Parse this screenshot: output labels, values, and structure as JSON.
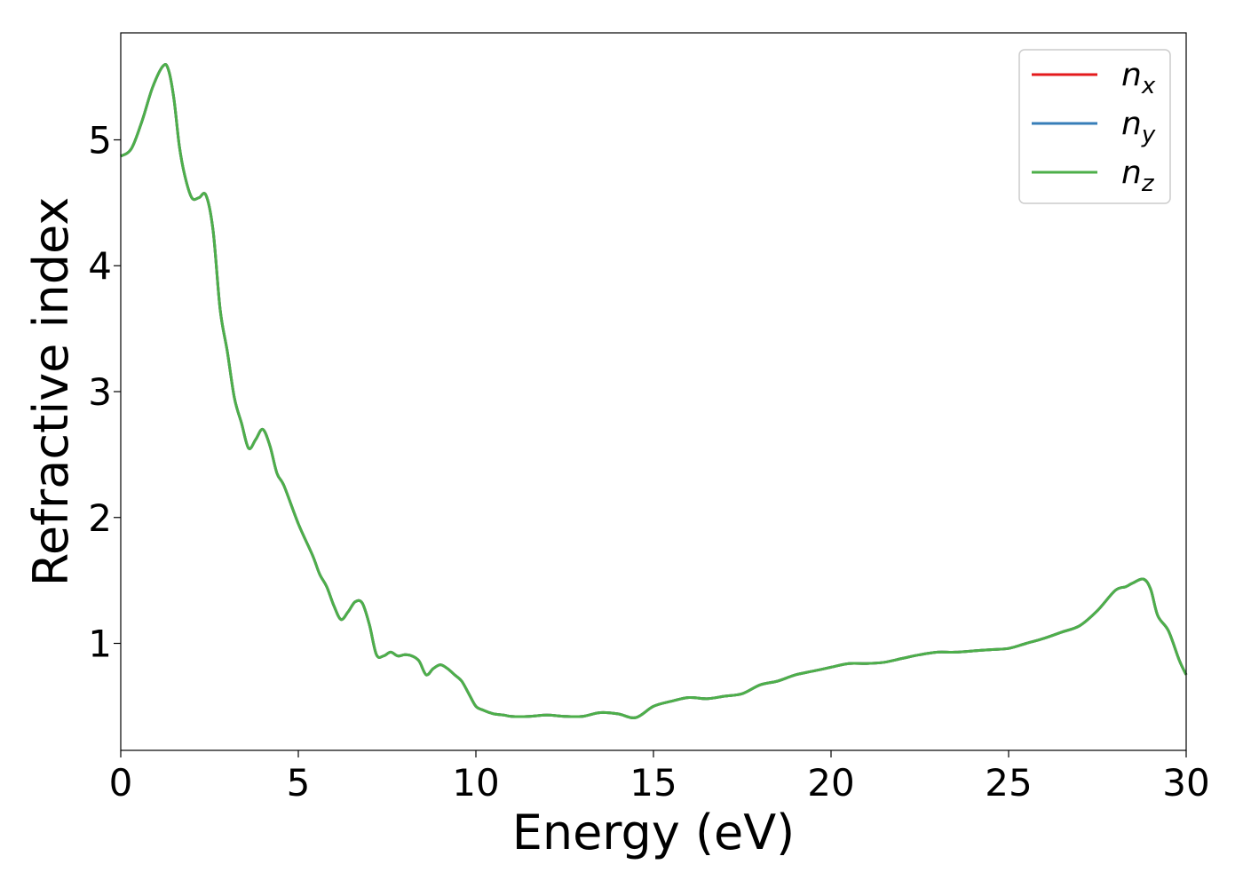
{
  "chart_data": {
    "type": "line",
    "xlabel": "Energy (eV)",
    "ylabel": "Refractive index",
    "xlim": [
      0,
      30
    ],
    "ylim": [
      0.15,
      5.85
    ],
    "xticks": [
      0,
      5,
      10,
      15,
      20,
      25,
      30
    ],
    "yticks": [
      1,
      2,
      3,
      4,
      5
    ],
    "grid": false,
    "legend_position": "top-right",
    "series": [
      {
        "name": "n_x",
        "label_base": "n",
        "label_sub": "x",
        "color": "#e41a1c",
        "x": [
          0,
          0.3,
          0.6,
          0.9,
          1.2,
          1.35,
          1.5,
          1.65,
          1.8,
          2.0,
          2.2,
          2.4,
          2.6,
          2.8,
          3.0,
          3.2,
          3.4,
          3.6,
          3.8,
          4.0,
          4.2,
          4.4,
          4.6,
          5.0,
          5.4,
          5.6,
          5.8,
          6.0,
          6.2,
          6.4,
          6.6,
          6.8,
          7.0,
          7.2,
          7.4,
          7.6,
          7.8,
          8.0,
          8.2,
          8.4,
          8.6,
          8.8,
          9.0,
          9.2,
          9.4,
          9.6,
          9.8,
          10.0,
          10.2,
          10.5,
          10.8,
          11.0,
          11.5,
          12.0,
          12.5,
          13.0,
          13.5,
          14.0,
          14.5,
          15.0,
          15.5,
          16.0,
          16.5,
          17.0,
          17.5,
          18.0,
          18.5,
          19.0,
          19.5,
          20.0,
          20.5,
          21.0,
          21.5,
          22.0,
          22.5,
          23.0,
          23.5,
          24.0,
          24.5,
          25.0,
          25.5,
          26.0,
          26.5,
          27.0,
          27.5,
          28.0,
          28.3,
          28.5,
          28.8,
          29.0,
          29.2,
          29.5,
          29.8,
          30.0
        ],
        "y": [
          4.87,
          4.93,
          5.15,
          5.42,
          5.59,
          5.55,
          5.32,
          4.95,
          4.72,
          4.54,
          4.54,
          4.56,
          4.28,
          3.65,
          3.32,
          2.95,
          2.75,
          2.55,
          2.62,
          2.7,
          2.57,
          2.35,
          2.25,
          1.95,
          1.7,
          1.55,
          1.45,
          1.3,
          1.19,
          1.25,
          1.33,
          1.32,
          1.15,
          0.91,
          0.9,
          0.93,
          0.9,
          0.91,
          0.9,
          0.86,
          0.75,
          0.8,
          0.83,
          0.8,
          0.75,
          0.7,
          0.6,
          0.5,
          0.47,
          0.44,
          0.43,
          0.42,
          0.42,
          0.43,
          0.42,
          0.42,
          0.45,
          0.44,
          0.41,
          0.5,
          0.54,
          0.57,
          0.56,
          0.58,
          0.6,
          0.67,
          0.7,
          0.75,
          0.78,
          0.81,
          0.84,
          0.84,
          0.85,
          0.88,
          0.91,
          0.93,
          0.93,
          0.94,
          0.95,
          0.96,
          1.0,
          1.04,
          1.09,
          1.14,
          1.26,
          1.42,
          1.45,
          1.48,
          1.51,
          1.43,
          1.22,
          1.1,
          0.87,
          0.75
        ]
      },
      {
        "name": "n_y",
        "label_base": "n",
        "label_sub": "y",
        "color": "#377eb8",
        "x": [
          0,
          0.3,
          0.6,
          0.9,
          1.2,
          1.35,
          1.5,
          1.65,
          1.8,
          2.0,
          2.2,
          2.4,
          2.6,
          2.8,
          3.0,
          3.2,
          3.4,
          3.6,
          3.8,
          4.0,
          4.2,
          4.4,
          4.6,
          5.0,
          5.4,
          5.6,
          5.8,
          6.0,
          6.2,
          6.4,
          6.6,
          6.8,
          7.0,
          7.2,
          7.4,
          7.6,
          7.8,
          8.0,
          8.2,
          8.4,
          8.6,
          8.8,
          9.0,
          9.2,
          9.4,
          9.6,
          9.8,
          10.0,
          10.2,
          10.5,
          10.8,
          11.0,
          11.5,
          12.0,
          12.5,
          13.0,
          13.5,
          14.0,
          14.5,
          15.0,
          15.5,
          16.0,
          16.5,
          17.0,
          17.5,
          18.0,
          18.5,
          19.0,
          19.5,
          20.0,
          20.5,
          21.0,
          21.5,
          22.0,
          22.5,
          23.0,
          23.5,
          24.0,
          24.5,
          25.0,
          25.5,
          26.0,
          26.5,
          27.0,
          27.5,
          28.0,
          28.3,
          28.5,
          28.8,
          29.0,
          29.2,
          29.5,
          29.8,
          30.0
        ],
        "y": [
          4.87,
          4.93,
          5.15,
          5.42,
          5.59,
          5.55,
          5.32,
          4.95,
          4.72,
          4.54,
          4.54,
          4.56,
          4.28,
          3.65,
          3.32,
          2.95,
          2.75,
          2.55,
          2.62,
          2.7,
          2.57,
          2.35,
          2.25,
          1.95,
          1.7,
          1.55,
          1.45,
          1.3,
          1.19,
          1.25,
          1.33,
          1.32,
          1.15,
          0.91,
          0.9,
          0.93,
          0.9,
          0.91,
          0.9,
          0.86,
          0.75,
          0.8,
          0.83,
          0.8,
          0.75,
          0.7,
          0.6,
          0.5,
          0.47,
          0.44,
          0.43,
          0.42,
          0.42,
          0.43,
          0.42,
          0.42,
          0.45,
          0.44,
          0.41,
          0.5,
          0.54,
          0.57,
          0.56,
          0.58,
          0.6,
          0.67,
          0.7,
          0.75,
          0.78,
          0.81,
          0.84,
          0.84,
          0.85,
          0.88,
          0.91,
          0.93,
          0.93,
          0.94,
          0.95,
          0.96,
          1.0,
          1.04,
          1.09,
          1.14,
          1.26,
          1.42,
          1.45,
          1.48,
          1.51,
          1.43,
          1.22,
          1.1,
          0.87,
          0.75
        ]
      },
      {
        "name": "n_z",
        "label_base": "n",
        "label_sub": "z",
        "color": "#4daf4a",
        "x": [
          0,
          0.3,
          0.6,
          0.9,
          1.2,
          1.35,
          1.5,
          1.65,
          1.8,
          2.0,
          2.2,
          2.4,
          2.6,
          2.8,
          3.0,
          3.2,
          3.4,
          3.6,
          3.8,
          4.0,
          4.2,
          4.4,
          4.6,
          5.0,
          5.4,
          5.6,
          5.8,
          6.0,
          6.2,
          6.4,
          6.6,
          6.8,
          7.0,
          7.2,
          7.4,
          7.6,
          7.8,
          8.0,
          8.2,
          8.4,
          8.6,
          8.8,
          9.0,
          9.2,
          9.4,
          9.6,
          9.8,
          10.0,
          10.2,
          10.5,
          10.8,
          11.0,
          11.5,
          12.0,
          12.5,
          13.0,
          13.5,
          14.0,
          14.5,
          15.0,
          15.5,
          16.0,
          16.5,
          17.0,
          17.5,
          18.0,
          18.5,
          19.0,
          19.5,
          20.0,
          20.5,
          21.0,
          21.5,
          22.0,
          22.5,
          23.0,
          23.5,
          24.0,
          24.5,
          25.0,
          25.5,
          26.0,
          26.5,
          27.0,
          27.5,
          28.0,
          28.3,
          28.5,
          28.8,
          29.0,
          29.2,
          29.5,
          29.8,
          30.0
        ],
        "y": [
          4.87,
          4.93,
          5.15,
          5.42,
          5.59,
          5.55,
          5.32,
          4.95,
          4.72,
          4.54,
          4.54,
          4.56,
          4.28,
          3.65,
          3.32,
          2.95,
          2.75,
          2.55,
          2.62,
          2.7,
          2.57,
          2.35,
          2.25,
          1.95,
          1.7,
          1.55,
          1.45,
          1.3,
          1.19,
          1.25,
          1.33,
          1.32,
          1.15,
          0.91,
          0.9,
          0.93,
          0.9,
          0.91,
          0.9,
          0.86,
          0.75,
          0.8,
          0.83,
          0.8,
          0.75,
          0.7,
          0.6,
          0.5,
          0.47,
          0.44,
          0.43,
          0.42,
          0.42,
          0.43,
          0.42,
          0.42,
          0.45,
          0.44,
          0.41,
          0.5,
          0.54,
          0.57,
          0.56,
          0.58,
          0.6,
          0.67,
          0.7,
          0.75,
          0.78,
          0.81,
          0.84,
          0.84,
          0.85,
          0.88,
          0.91,
          0.93,
          0.93,
          0.94,
          0.95,
          0.96,
          1.0,
          1.04,
          1.09,
          1.14,
          1.26,
          1.42,
          1.45,
          1.48,
          1.51,
          1.43,
          1.22,
          1.1,
          0.87,
          0.75
        ]
      }
    ]
  }
}
